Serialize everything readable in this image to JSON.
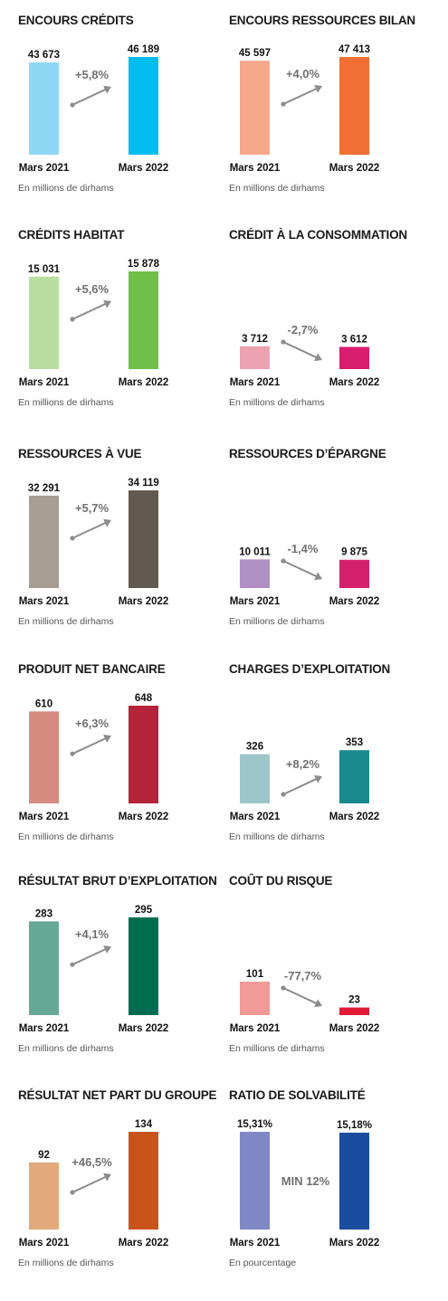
{
  "panels": [
    {
      "title": "ENCOURS CRÉDITS",
      "unit": "En millions de dirhams"
    },
    {
      "title": "ENCOURS RESSOURCES BILAN",
      "unit": "En millions de dirhams"
    },
    {
      "title": "CRÉDITS HABITAT",
      "unit": "En millions de dirhams"
    },
    {
      "title": "CRÉDIT À LA CONSOMMATION",
      "unit": "En millions de dirhams"
    },
    {
      "title": "RESSOURCES À VUE",
      "unit": "En millions de dirhams"
    },
    {
      "title": "RESSOURCES D’ÉPARGNE",
      "unit": "En millions de dirhams"
    },
    {
      "title": "PRODUIT NET BANCAIRE",
      "unit": "En millions de dirhams"
    },
    {
      "title": "CHARGES D’EXPLOITATION",
      "unit": "En millions de dirhams"
    },
    {
      "title": "RÉSULTAT BRUT D’EXPLOITATION",
      "unit": "En millions de dirhams"
    },
    {
      "title": "COÛT DU RISQUE",
      "unit": "En millions de dirhams"
    },
    {
      "title": "RÉSULTAT NET PART DU GROUPE",
      "unit": "En millions de dirhams"
    },
    {
      "title": "RATIO DE SOLVABILITÉ",
      "unit": "En pourcentage"
    }
  ],
  "chart_data": [
    {
      "type": "bar",
      "title": "ENCOURS CRÉDITS",
      "categories": [
        "Mars 2021",
        "Mars 2022"
      ],
      "values": [
        43673,
        46189
      ],
      "labels": [
        "43 673",
        "46 189"
      ],
      "change": "+5,8%",
      "colors": [
        "#8fd8f5",
        "#00bdf0"
      ],
      "ylim": [
        0,
        46189
      ]
    },
    {
      "type": "bar",
      "title": "ENCOURS RESSOURCES BILAN",
      "categories": [
        "Mars 2021",
        "Mars 2022"
      ],
      "values": [
        45597,
        47413
      ],
      "labels": [
        "45 597",
        "47 413"
      ],
      "change": "+4,0%",
      "colors": [
        "#f6a88a",
        "#f16f35"
      ],
      "ylim": [
        0,
        47413
      ]
    },
    {
      "type": "bar",
      "title": "CRÉDITS HABITAT",
      "categories": [
        "Mars 2021",
        "Mars 2022"
      ],
      "values": [
        15031,
        15878
      ],
      "labels": [
        "15 031",
        "15 878"
      ],
      "change": "+5,6%",
      "colors": [
        "#b8dea0",
        "#70bf48"
      ],
      "ylim": [
        0,
        15878
      ]
    },
    {
      "type": "bar",
      "title": "CRÉDIT À LA CONSOMMATION",
      "categories": [
        "Mars 2021",
        "Mars 2022"
      ],
      "values": [
        3712,
        3612
      ],
      "labels": [
        "3 712",
        "3 612"
      ],
      "change": "-2,7%",
      "colors": [
        "#eba2b1",
        "#d81d6f"
      ],
      "ylim": [
        0,
        15878
      ]
    },
    {
      "type": "bar",
      "title": "RESSOURCES À VUE",
      "categories": [
        "Mars 2021",
        "Mars 2022"
      ],
      "values": [
        32291,
        34119
      ],
      "labels": [
        "32 291",
        "34 119"
      ],
      "change": "+5,7%",
      "colors": [
        "#a79d92",
        "#625950"
      ],
      "ylim": [
        0,
        34119
      ]
    },
    {
      "type": "bar",
      "title": "RESSOURCES D’ÉPARGNE",
      "categories": [
        "Mars 2021",
        "Mars 2022"
      ],
      "values": [
        10011,
        9875
      ],
      "labels": [
        "10 011",
        "9 875"
      ],
      "change": "-1,4%",
      "colors": [
        "#b08fc4",
        "#d5206c"
      ],
      "ylim": [
        0,
        34119
      ]
    },
    {
      "type": "bar",
      "title": "PRODUIT NET BANCAIRE",
      "categories": [
        "Mars 2021",
        "Mars 2022"
      ],
      "values": [
        610,
        648
      ],
      "labels": [
        "610",
        "648"
      ],
      "change": "+6,3%",
      "colors": [
        "#d58b80",
        "#b4233a"
      ],
      "ylim": [
        0,
        648
      ]
    },
    {
      "type": "bar",
      "title": "CHARGES D’EXPLOITATION",
      "categories": [
        "Mars 2021",
        "Mars 2022"
      ],
      "values": [
        326,
        353
      ],
      "labels": [
        "326",
        "353"
      ],
      "change": "+8,2%",
      "colors": [
        "#9cc5c9",
        "#1a8a8e"
      ],
      "ylim": [
        0,
        648
      ]
    },
    {
      "type": "bar",
      "title": "RÉSULTAT BRUT D’EXPLOITATION",
      "categories": [
        "Mars 2021",
        "Mars 2022"
      ],
      "values": [
        283,
        295
      ],
      "labels": [
        "283",
        "295"
      ],
      "change": "+4,1%",
      "colors": [
        "#66a896",
        "#006d50"
      ],
      "ylim": [
        0,
        295
      ]
    },
    {
      "type": "bar",
      "title": "COÛT DU RISQUE",
      "categories": [
        "Mars 2021",
        "Mars 2022"
      ],
      "values": [
        101,
        23
      ],
      "labels": [
        "101",
        "23"
      ],
      "change": "-77,7%",
      "colors": [
        "#f19a97",
        "#e21a36"
      ],
      "ylim": [
        0,
        295
      ]
    },
    {
      "type": "bar",
      "title": "RÉSULTAT NET PART DU GROUPE",
      "categories": [
        "Mars 2021",
        "Mars 2022"
      ],
      "values": [
        92,
        134
      ],
      "labels": [
        "92",
        "134"
      ],
      "change": "+46,5%",
      "colors": [
        "#e2aa7c",
        "#c8541a"
      ],
      "ylim": [
        0,
        134
      ]
    },
    {
      "type": "bar",
      "title": "RATIO DE SOLVABILITÉ",
      "categories": [
        "Mars 2021",
        "Mars 2022"
      ],
      "values": [
        15.31,
        15.18
      ],
      "labels": [
        "15,31%",
        "15,18%"
      ],
      "note": "MIN 12%",
      "colors": [
        "#8088c6",
        "#1a4d9e"
      ],
      "ylim": [
        0,
        15.31
      ]
    }
  ]
}
